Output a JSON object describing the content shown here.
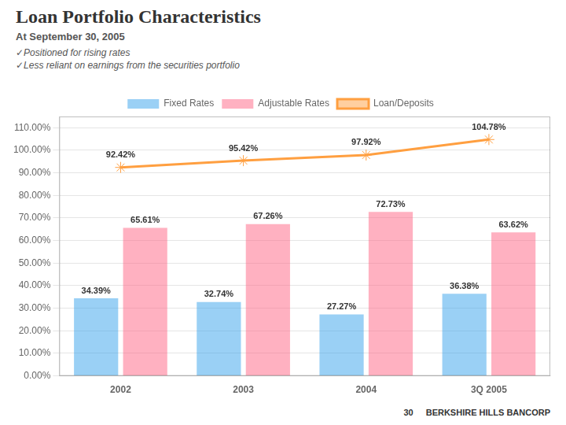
{
  "chart_data": {
    "type": "bar",
    "title": "Loan Portfolio Characteristics",
    "subtitle": "At September 30, 2005",
    "annotations": [
      "✓Positioned for rising rates",
      "✓Less reliant on earnings from the securities portfolio",
      "30",
      "BERKSHIRE HILLS BANCORP"
    ],
    "categories": [
      "2002",
      "2003",
      "2004",
      "3Q 2005"
    ],
    "series": [
      {
        "name": "Fixed Rates",
        "type": "bar",
        "values": [
          34.39,
          32.74,
          27.27,
          36.38
        ],
        "value_labels": [
          "34.39%",
          "32.74%",
          "27.27%",
          "36.38%"
        ]
      },
      {
        "name": "Adjustable Rates",
        "type": "bar",
        "values": [
          65.61,
          67.26,
          72.73,
          63.62
        ],
        "value_labels": [
          "65.61%",
          "67.26%",
          "72.73%",
          "63.62%"
        ]
      },
      {
        "name": "Loan/Deposits",
        "type": "line",
        "marker": "star",
        "values": [
          92.42,
          95.42,
          97.92,
          104.78
        ],
        "value_labels": [
          "92.42%",
          "95.42%",
          "97.92%",
          "104.78%"
        ]
      }
    ],
    "ylim": [
      0,
      115
    ],
    "yticks": [
      {
        "value": 0,
        "label": "0.00%"
      },
      {
        "value": 10,
        "label": "10.00%"
      },
      {
        "value": 20,
        "label": "20.00%"
      },
      {
        "value": 30,
        "label": "30.00%"
      },
      {
        "value": 40,
        "label": "40.00%"
      },
      {
        "value": 50,
        "label": "50.00%"
      },
      {
        "value": 60,
        "label": "60.00%"
      },
      {
        "value": 70,
        "label": "70.00%"
      },
      {
        "value": 80,
        "label": "80.00%"
      },
      {
        "value": 90,
        "label": "90.00%"
      },
      {
        "value": 100,
        "label": "100.00%"
      },
      {
        "value": 110,
        "label": "110.00%"
      }
    ],
    "grid": true,
    "legend": "top",
    "data_labels": true
  }
}
